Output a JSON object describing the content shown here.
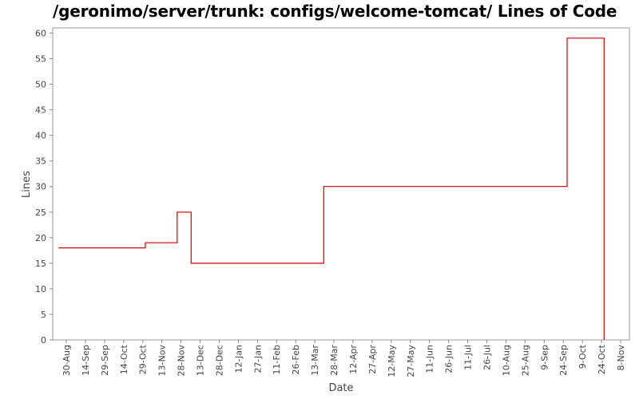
{
  "chart_data": {
    "type": "line",
    "title": "/geronimo/server/trunk: configs/welcome-tomcat/ Lines of Code",
    "xlabel": "Date",
    "ylabel": "Lines",
    "step": true,
    "ylim": [
      0,
      61
    ],
    "yticks": [
      0,
      5,
      10,
      15,
      20,
      25,
      30,
      35,
      40,
      45,
      50,
      55,
      60
    ],
    "x_tick_labels": [
      "30-Aug",
      "14-Sep",
      "29-Sep",
      "14-Oct",
      "29-Oct",
      "13-Nov",
      "28-Nov",
      "13-Dec",
      "28-Dec",
      "12-Jan",
      "27-Jan",
      "11-Feb",
      "26-Feb",
      "13-Mar",
      "28-Mar",
      "12-Apr",
      "27-Apr",
      "12-May",
      "27-May",
      "11-Jun",
      "26-Jun",
      "11-Jul",
      "26-Jul",
      "10-Aug",
      "25-Aug",
      "9-Sep",
      "24-Sep",
      "9-Oct",
      "24-Oct",
      "8-Nov"
    ],
    "x_tick_interval_days": 15,
    "grid": false,
    "series": [
      {
        "color": "#cc0000",
        "points": [
          {
            "x": "24-Aug",
            "y": 18
          },
          {
            "x": "31-Oct",
            "y": 19
          },
          {
            "x": "25-Nov",
            "y": 25
          },
          {
            "x": "6-Dec",
            "y": 15
          },
          {
            "x": "20-Mar",
            "y": 30
          },
          {
            "x": "27-Sep",
            "y": 59
          },
          {
            "x": "26-Oct",
            "y": 0
          }
        ]
      }
    ]
  }
}
